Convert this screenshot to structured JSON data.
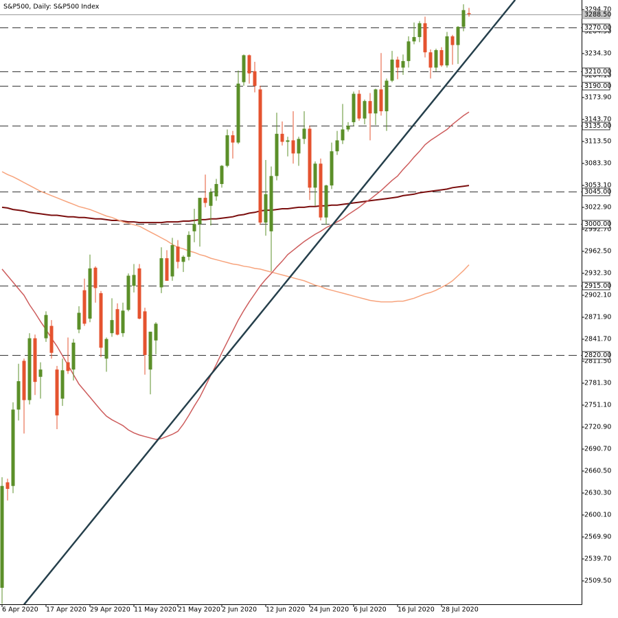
{
  "chart_data": {
    "type": "candlestick",
    "title": "S&P500, Daily:  S&P500 Index",
    "bull_color": "#5b8f29",
    "bear_color": "#e5532f",
    "categories": [
      "6 Apr 2020",
      null,
      null,
      null,
      null,
      null,
      null,
      null,
      "17 Apr 2020",
      null,
      null,
      null,
      null,
      null,
      null,
      null,
      "29 Apr 2020",
      null,
      null,
      null,
      null,
      null,
      null,
      null,
      "11 May 2020",
      null,
      null,
      null,
      null,
      null,
      null,
      null,
      "21 May 2020",
      null,
      null,
      null,
      null,
      null,
      null,
      null,
      "2 Jun 2020",
      null,
      null,
      null,
      null,
      null,
      null,
      null,
      "12 Jun 2020",
      null,
      null,
      null,
      null,
      null,
      null,
      null,
      "24 Jun 2020",
      null,
      null,
      null,
      null,
      null,
      null,
      null,
      "6 Jul 2020",
      null,
      null,
      null,
      null,
      null,
      null,
      null,
      "16 Jul 2020",
      null,
      null,
      null,
      null,
      null,
      null,
      null,
      "28 Jul 2020",
      null,
      null,
      null,
      null,
      null
    ],
    "open": [
      2500,
      2645,
      2640,
      2745,
      2812,
      2758,
      2843,
      2790,
      2843,
      2860,
      2800,
      2760,
      2810,
      2800,
      2855,
      2909,
      2870,
      2940,
      2905,
      2815,
      2850,
      2883,
      2850,
      2882,
      2915,
      2939,
      2880,
      2800,
      2840,
      2913,
      2953,
      2928,
      2969,
      2948,
      2955,
      2990,
      3000,
      3036,
      3025,
      3038,
      3055,
      3080,
      3122,
      3112,
      3195,
      3232,
      3210,
      3185,
      3002,
      2990,
      3066,
      3124,
      3113,
      3115,
      3097,
      3117,
      3131,
      3050,
      3083,
      3009,
      3053,
      3100,
      3115,
      3130,
      3140,
      3179,
      3145,
      3169,
      3152,
      3185,
      3155,
      3197,
      3226,
      3215,
      3224,
      3251,
      3257,
      3276,
      3236,
      3215,
      3239,
      3218,
      3258,
      3246,
      3271,
      3290
    ],
    "high": [
      2652,
      2650,
      2755,
      2808,
      2815,
      2850,
      2848,
      2810,
      2880,
      2868,
      2805,
      2815,
      2844,
      2842,
      2887,
      2925,
      2958,
      2942,
      2908,
      2844,
      2898,
      2891,
      2892,
      2932,
      2945,
      2945,
      2885,
      2852,
      2865,
      2968,
      2964,
      2981,
      2978,
      2957,
      2990,
      3021,
      3036,
      3068,
      3049,
      3062,
      3081,
      3130,
      3128,
      3211,
      3233,
      3233,
      3223,
      3190,
      3088,
      3079,
      3153,
      3141,
      3120,
      3155,
      3120,
      3155,
      3135,
      3086,
      3090,
      3054,
      3112,
      3128,
      3165,
      3140,
      3182,
      3184,
      3171,
      3180,
      3186,
      3235,
      3200,
      3238,
      3230,
      3233,
      3258,
      3277,
      3279,
      3285,
      3240,
      3241,
      3243,
      3264,
      3260,
      3272,
      3302,
      3297
    ],
    "low": [
      2478,
      2620,
      2630,
      2730,
      2712,
      2752,
      2765,
      2760,
      2838,
      2815,
      2718,
      2750,
      2794,
      2785,
      2850,
      2860,
      2865,
      2892,
      2817,
      2797,
      2845,
      2847,
      2845,
      2880,
      2906,
      2869,
      2793,
      2766,
      2821,
      2905,
      2922,
      2922,
      2939,
      2934,
      2950,
      2975,
      2969,
      3023,
      2998,
      3032,
      3050,
      3078,
      3090,
      3110,
      3190,
      3193,
      3181,
      2999,
      2984,
      2935,
      3060,
      3108,
      3093,
      3083,
      3080,
      3110,
      3033,
      3025,
      3005,
      2999,
      3048,
      3095,
      3110,
      3127,
      3135,
      3142,
      3137,
      3115,
      3136,
      3149,
      3128,
      3195,
      3199,
      3205,
      3215,
      3247,
      3250,
      3229,
      3200,
      3210,
      3216,
      3215,
      3219,
      3220,
      3265,
      3285
    ],
    "close": [
      2640,
      2636,
      2745,
      2784,
      2758,
      2843,
      2783,
      2800,
      2875,
      2823,
      2737,
      2799,
      2798,
      2837,
      2878,
      2863,
      2939,
      2912,
      2830,
      2842,
      2868,
      2848,
      2881,
      2929,
      2930,
      2870,
      2820,
      2852,
      2863,
      2953,
      2922,
      2971,
      2948,
      2955,
      2985,
      3000,
      3036,
      3029,
      3044,
      3055,
      3080,
      3122,
      3112,
      3193,
      3232,
      3207,
      3190,
      3002,
      3041,
      3066,
      3124,
      3113,
      3115,
      3097,
      3117,
      3131,
      3050,
      3083,
      3009,
      3053,
      3100,
      3115,
      3130,
      3135,
      3179,
      3145,
      3169,
      3152,
      3185,
      3155,
      3197,
      3226,
      3215,
      3224,
      3251,
      3257,
      3276,
      3236,
      3215,
      3239,
      3218,
      3258,
      3246,
      3271,
      3294,
      3288.5
    ],
    "overlays": [
      {
        "color": "#7a0d0d",
        "values": [
          3023,
          3022,
          3020,
          3019,
          3018,
          3016,
          3015,
          3014,
          3013,
          3012,
          3012,
          3011,
          3010,
          3010,
          3009,
          3009,
          3008,
          3007,
          3007,
          3006,
          3005,
          3005,
          3004,
          3003,
          3003,
          3002,
          3002,
          3002,
          3002,
          3002,
          3003,
          3003,
          3003,
          3004,
          3004,
          3005,
          3006,
          3006,
          3007,
          3007,
          3008,
          3009,
          3010,
          3012,
          3013,
          3015,
          3016,
          3018,
          3019,
          3019,
          3020,
          3021,
          3021,
          3022,
          3023,
          3023,
          3024,
          3024,
          3025,
          3025,
          3026,
          3026,
          3027,
          3028,
          3029,
          3030,
          3031,
          3032,
          3033,
          3034,
          3035,
          3036,
          3037,
          3039,
          3040,
          3041,
          3043,
          3044,
          3045,
          3046,
          3047,
          3048,
          3050,
          3051,
          3052,
          3053
        ]
      },
      {
        "color": "#f7a37c",
        "values": [
          3072,
          3068,
          3065,
          3061,
          3057,
          3053,
          3049,
          3045,
          3042,
          3039,
          3036,
          3033,
          3030,
          3027,
          3024,
          3022,
          3020,
          3017,
          3014,
          3011,
          3009,
          3006,
          3003,
          3001,
          2999,
          2997,
          2993,
          2989,
          2985,
          2981,
          2977,
          2972,
          2968,
          2966,
          2963,
          2961,
          2958,
          2956,
          2953,
          2951,
          2949,
          2947,
          2945,
          2944,
          2942,
          2941,
          2939,
          2938,
          2936,
          2934,
          2932,
          2930,
          2928,
          2926,
          2924,
          2922,
          2919,
          2916,
          2914,
          2911,
          2909,
          2907,
          2905,
          2903,
          2901,
          2899,
          2897,
          2895,
          2894,
          2893,
          2893,
          2893,
          2894,
          2894,
          2896,
          2898,
          2901,
          2904,
          2906,
          2909,
          2913,
          2917,
          2922,
          2929,
          2936,
          2944
        ]
      },
      {
        "color": "#cd5c5c",
        "values": [
          2938,
          2929,
          2920,
          2911,
          2902,
          2889,
          2878,
          2866,
          2855,
          2843,
          2832,
          2819,
          2806,
          2793,
          2780,
          2771,
          2762,
          2753,
          2744,
          2736,
          2731,
          2727,
          2723,
          2717,
          2713,
          2710,
          2708,
          2706,
          2704,
          2705,
          2708,
          2711,
          2715,
          2725,
          2737,
          2750,
          2762,
          2777,
          2792,
          2807,
          2823,
          2838,
          2853,
          2868,
          2881,
          2893,
          2904,
          2915,
          2924,
          2932,
          2941,
          2949,
          2958,
          2964,
          2970,
          2976,
          2981,
          2986,
          2990,
          2995,
          2999,
          3003,
          3007,
          3013,
          3018,
          3023,
          3029,
          3034,
          3040,
          3046,
          3053,
          3060,
          3066,
          3075,
          3083,
          3092,
          3100,
          3109,
          3115,
          3120,
          3125,
          3130,
          3137,
          3143,
          3149,
          3154
        ]
      }
    ],
    "trendline": {
      "color": "#253f4b",
      "points": [
        [
          4,
          2477
        ],
        [
          93.4,
          3308
        ]
      ]
    },
    "current_price": {
      "value": 3288.5,
      "label": "3288.50"
    },
    "levels": [
      {
        "value": 3270,
        "label": "3270.00"
      },
      {
        "value": 3210,
        "label": "3210.00"
      },
      {
        "value": 3190,
        "label": "3190.00"
      },
      {
        "value": 3135,
        "label": "3135.00"
      },
      {
        "value": 3045,
        "label": "3045.00"
      },
      {
        "value": 3000,
        "label": "3000.00"
      },
      {
        "value": 2915,
        "label": "2915.00"
      },
      {
        "value": 2820,
        "label": "2820.00"
      }
    ],
    "ylim": [
      2477.4,
      3307.9
    ],
    "yticks": [
      {
        "value": 3294.7,
        "label": "3294.70"
      },
      {
        "value": 3264.5,
        "label": "3264.50"
      },
      {
        "value": 3234.3,
        "label": "3234.30"
      },
      {
        "value": 3204.1,
        "label": "3204.10"
      },
      {
        "value": 3173.9,
        "label": "3173.90"
      },
      {
        "value": 3143.7,
        "label": "3143.70"
      },
      {
        "value": 3113.5,
        "label": "3113.50"
      },
      {
        "value": 3083.3,
        "label": "3083.30"
      },
      {
        "value": 3053.1,
        "label": "3053.10"
      },
      {
        "value": 3022.9,
        "label": "3022.90"
      },
      {
        "value": 2992.7,
        "label": "2992.70"
      },
      {
        "value": 2962.5,
        "label": "2962.50"
      },
      {
        "value": 2932.3,
        "label": "2932.30"
      },
      {
        "value": 2902.1,
        "label": "2902.10"
      },
      {
        "value": 2871.9,
        "label": "2871.90"
      },
      {
        "value": 2841.7,
        "label": "2841.70"
      },
      {
        "value": 2811.5,
        "label": "2811.50"
      },
      {
        "value": 2781.3,
        "label": "2781.30"
      },
      {
        "value": 2751.1,
        "label": "2751.10"
      },
      {
        "value": 2720.9,
        "label": "2720.90"
      },
      {
        "value": 2690.7,
        "label": "2690.70"
      },
      {
        "value": 2660.5,
        "label": "2660.50"
      },
      {
        "value": 2630.3,
        "label": "2630.30"
      },
      {
        "value": 2600.1,
        "label": "2600.10"
      },
      {
        "value": 2569.9,
        "label": "2569.90"
      },
      {
        "value": 2539.7,
        "label": "2539.70"
      },
      {
        "value": 2509.5,
        "label": "2509.50"
      }
    ]
  }
}
